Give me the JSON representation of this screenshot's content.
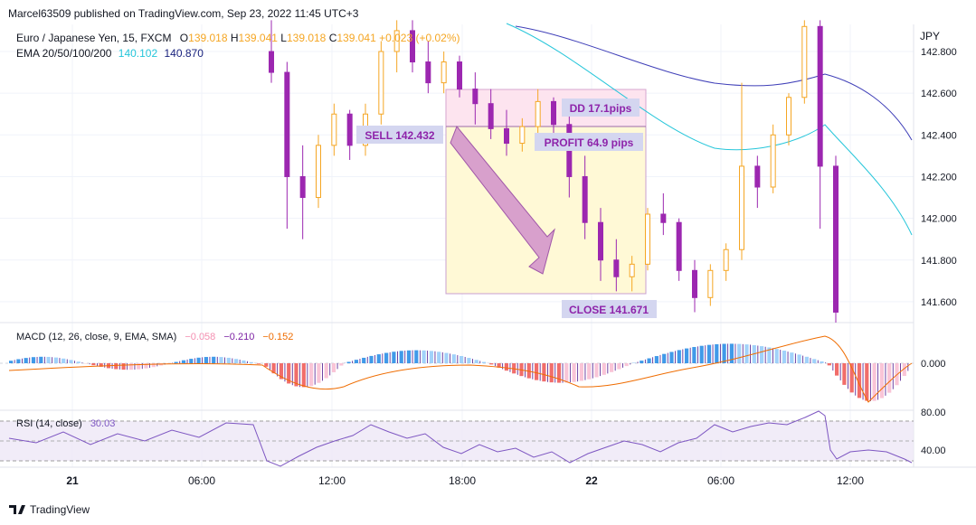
{
  "header": {
    "published": "Marcel63509 published on TradingView.com, Sep 23, 2022 11:45 UTC+3",
    "symbol": "Euro / Japanese Yen, 15, FXCM",
    "ohlc": {
      "o_label": "O",
      "o": "139.018",
      "h_label": "H",
      "h": "139.041",
      "l_label": "L",
      "l": "139.018",
      "c_label": "C",
      "c": "139.041",
      "change": "+0.023 (+0.02%)"
    },
    "ema_label": "EMA 20/50/100/200",
    "ema_values": [
      {
        "value": "140.102",
        "color": "#26c6da"
      },
      {
        "value": "140.870",
        "color": "#1a237e"
      }
    ]
  },
  "price_axis": {
    "currency": "JPY",
    "ticks": [
      "142.800",
      "142.600",
      "142.400",
      "142.200",
      "142.000",
      "141.800",
      "141.600"
    ]
  },
  "time_axis": {
    "ticks": [
      "21",
      "06:00",
      "12:00",
      "18:00",
      "22",
      "06:00",
      "12:00"
    ]
  },
  "annotations": {
    "sell": "SELL 142.432",
    "dd": "DD 17.1pips",
    "profit": "PROFIT 64.9 pips",
    "close": "CLOSE 141.671"
  },
  "macd": {
    "label": "MACD (12, 26, close, 9, EMA, SMA)",
    "values": [
      {
        "value": "−0.058",
        "color": "#f8bbd0"
      },
      {
        "value": "−0.210",
        "color": "#7b1fa2"
      },
      {
        "value": "−0.152",
        "color": "#ef6c00"
      }
    ],
    "axis_label": "0.000"
  },
  "rsi": {
    "label": "RSI (14, close)",
    "value": "30.03",
    "axis_labels": [
      "80.00",
      "40.00"
    ]
  },
  "branding": {
    "logo_text": "TradingView"
  },
  "colors": {
    "up": "#f5a623",
    "down": "#9c27b0",
    "ema_fast": "#26c6da",
    "ema_slow": "#3f3fb8",
    "arrow": "#c77ac7",
    "profit_zone": "#fff9d6",
    "dd_zone": "#fde4ef"
  },
  "chart_data": {
    "type": "candlestick",
    "instrument": "Euro / Japanese Yen",
    "timeframe": "15",
    "y_range": [
      141.5,
      142.93
    ],
    "trade": {
      "side": "sell",
      "entry": 142.432,
      "exit": 141.671,
      "profit_pips": 64.9,
      "drawdown_pips": 17.1
    },
    "candles": [
      {
        "o": 142.8,
        "h": 142.95,
        "l": 142.65,
        "c": 142.7
      },
      {
        "o": 142.7,
        "h": 142.75,
        "l": 141.95,
        "c": 142.2
      },
      {
        "o": 142.2,
        "h": 142.35,
        "l": 141.9,
        "c": 142.1
      },
      {
        "o": 142.1,
        "h": 142.4,
        "l": 142.05,
        "c": 142.35
      },
      {
        "o": 142.35,
        "h": 142.55,
        "l": 142.3,
        "c": 142.5
      },
      {
        "o": 142.5,
        "h": 142.52,
        "l": 142.28,
        "c": 142.35
      },
      {
        "o": 142.35,
        "h": 142.55,
        "l": 142.3,
        "c": 142.5
      },
      {
        "o": 142.5,
        "h": 142.85,
        "l": 142.45,
        "c": 142.8
      },
      {
        "o": 142.8,
        "h": 142.95,
        "l": 142.7,
        "c": 142.9
      },
      {
        "o": 142.9,
        "h": 142.95,
        "l": 142.7,
        "c": 142.75
      },
      {
        "o": 142.75,
        "h": 142.85,
        "l": 142.6,
        "c": 142.65
      },
      {
        "o": 142.65,
        "h": 142.8,
        "l": 142.6,
        "c": 142.75
      },
      {
        "o": 142.75,
        "h": 142.78,
        "l": 142.58,
        "c": 142.62
      },
      {
        "o": 142.62,
        "h": 142.7,
        "l": 142.45,
        "c": 142.55
      },
      {
        "o": 142.55,
        "h": 142.62,
        "l": 142.38,
        "c": 142.43
      },
      {
        "o": 142.43,
        "h": 142.52,
        "l": 142.3,
        "c": 142.36
      },
      {
        "o": 142.36,
        "h": 142.48,
        "l": 142.32,
        "c": 142.44
      },
      {
        "o": 142.44,
        "h": 142.62,
        "l": 142.4,
        "c": 142.56
      },
      {
        "o": 142.56,
        "h": 142.58,
        "l": 142.4,
        "c": 142.45
      },
      {
        "o": 142.45,
        "h": 142.5,
        "l": 142.1,
        "c": 142.2
      },
      {
        "o": 142.2,
        "h": 142.3,
        "l": 141.9,
        "c": 141.98
      },
      {
        "o": 141.98,
        "h": 142.05,
        "l": 141.7,
        "c": 141.8
      },
      {
        "o": 141.8,
        "h": 141.9,
        "l": 141.65,
        "c": 141.72
      },
      {
        "o": 141.72,
        "h": 141.82,
        "l": 141.65,
        "c": 141.78
      },
      {
        "o": 141.78,
        "h": 142.05,
        "l": 141.75,
        "c": 142.02
      },
      {
        "o": 142.02,
        "h": 142.12,
        "l": 141.92,
        "c": 141.98
      },
      {
        "o": 141.98,
        "h": 142.0,
        "l": 141.7,
        "c": 141.75
      },
      {
        "o": 141.75,
        "h": 141.8,
        "l": 141.55,
        "c": 141.62
      },
      {
        "o": 141.62,
        "h": 141.78,
        "l": 141.58,
        "c": 141.75
      },
      {
        "o": 141.75,
        "h": 141.88,
        "l": 141.7,
        "c": 141.85
      },
      {
        "o": 141.85,
        "h": 142.65,
        "l": 141.8,
        "c": 142.25
      },
      {
        "o": 142.25,
        "h": 142.3,
        "l": 142.05,
        "c": 142.15
      },
      {
        "o": 142.15,
        "h": 142.45,
        "l": 142.12,
        "c": 142.4
      },
      {
        "o": 142.4,
        "h": 142.6,
        "l": 142.35,
        "c": 142.58
      },
      {
        "o": 142.58,
        "h": 142.95,
        "l": 142.55,
        "c": 142.92
      },
      {
        "o": 142.92,
        "h": 142.95,
        "l": 141.95,
        "c": 142.25
      },
      {
        "o": 142.25,
        "h": 142.3,
        "l": 141.5,
        "c": 141.55
      }
    ]
  }
}
